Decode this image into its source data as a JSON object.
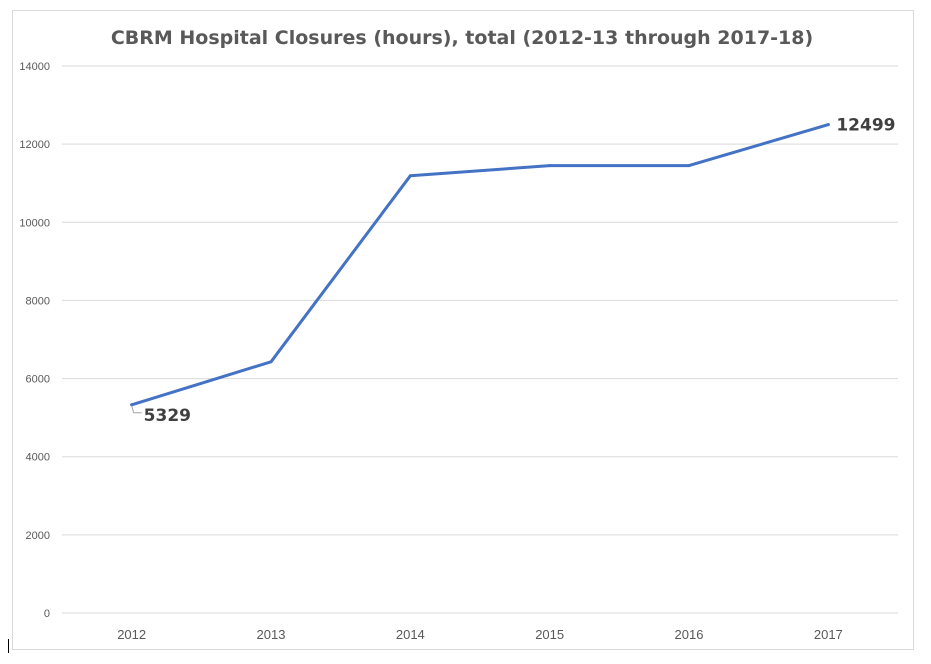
{
  "chart_data": {
    "type": "line",
    "title": "CBRM Hospital Closures (hours), total (2012-13 through 2017-18)",
    "xlabel": "",
    "ylabel": "",
    "categories": [
      "2012",
      "2013",
      "2014",
      "2015",
      "2016",
      "2017"
    ],
    "series": [
      {
        "values": [
          5329,
          6430,
          11190,
          11450,
          11450,
          12499
        ]
      }
    ],
    "ylim": [
      0,
      14000
    ],
    "yticks": [
      "0",
      "2000",
      "4000",
      "6000",
      "8000",
      "10000",
      "12000",
      "14000"
    ],
    "data_labels": [
      {
        "index": 0,
        "text": "5329"
      },
      {
        "index": 5,
        "text": "12499"
      }
    ],
    "grid": true,
    "legend": "none",
    "line_color": "#4472c4",
    "grid_color": "#d9d9d9"
  }
}
